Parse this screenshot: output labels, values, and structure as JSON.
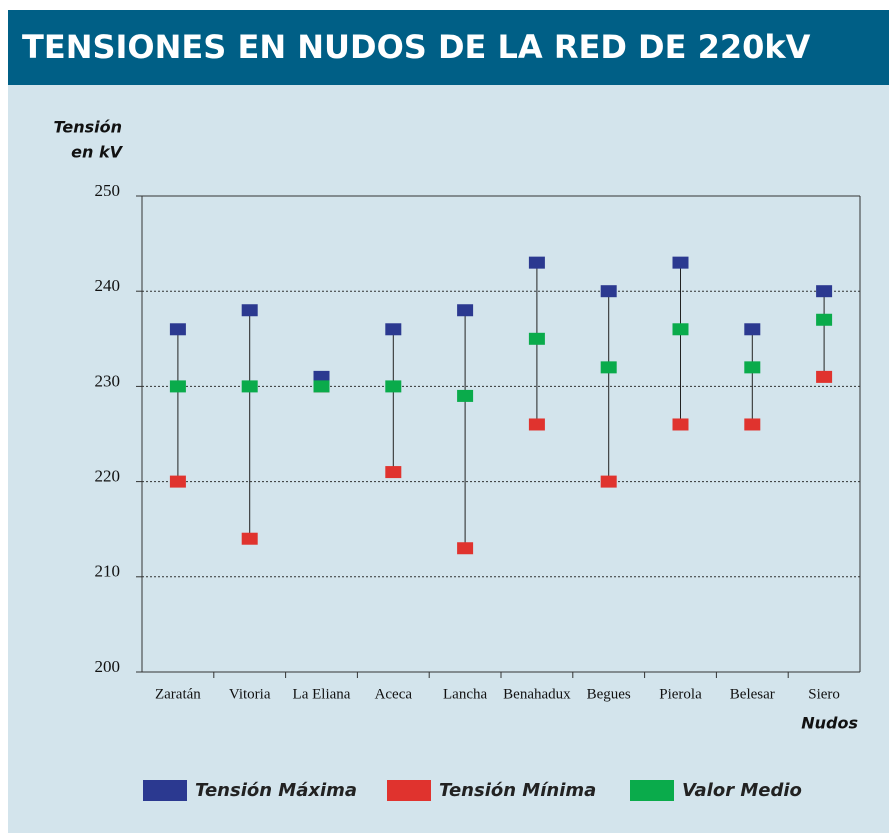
{
  "chart_data": {
    "type": "range",
    "title": "TENSIONES EN NUDOS DE LA RED DE 220kV",
    "y_label": [
      "Tensión",
      "en kV"
    ],
    "x_label": "Nudos",
    "categories": [
      "Zaratán",
      "Vitoria",
      "La Eliana",
      "Aceca",
      "Lancha",
      "Benahadux",
      "Begues",
      "Pierola",
      "Belesar",
      "Siero"
    ],
    "series": [
      {
        "name": "Tensión Máxima",
        "color": "#2b3990",
        "values": [
          236,
          238,
          231,
          236,
          238,
          243,
          240,
          243,
          236,
          240
        ]
      },
      {
        "name": "Tensión Mínima",
        "color": "#e0332e",
        "values": [
          220,
          214,
          230,
          221,
          213,
          226,
          220,
          226,
          226,
          231
        ]
      },
      {
        "name": "Valor Medio",
        "color": "#0aab4b",
        "values": [
          230,
          230,
          230,
          230,
          229,
          235,
          232,
          236,
          232,
          237
        ]
      }
    ],
    "ylim": [
      200,
      250
    ],
    "yticks": [
      200,
      210,
      220,
      230,
      240,
      250
    ],
    "grid": true
  }
}
